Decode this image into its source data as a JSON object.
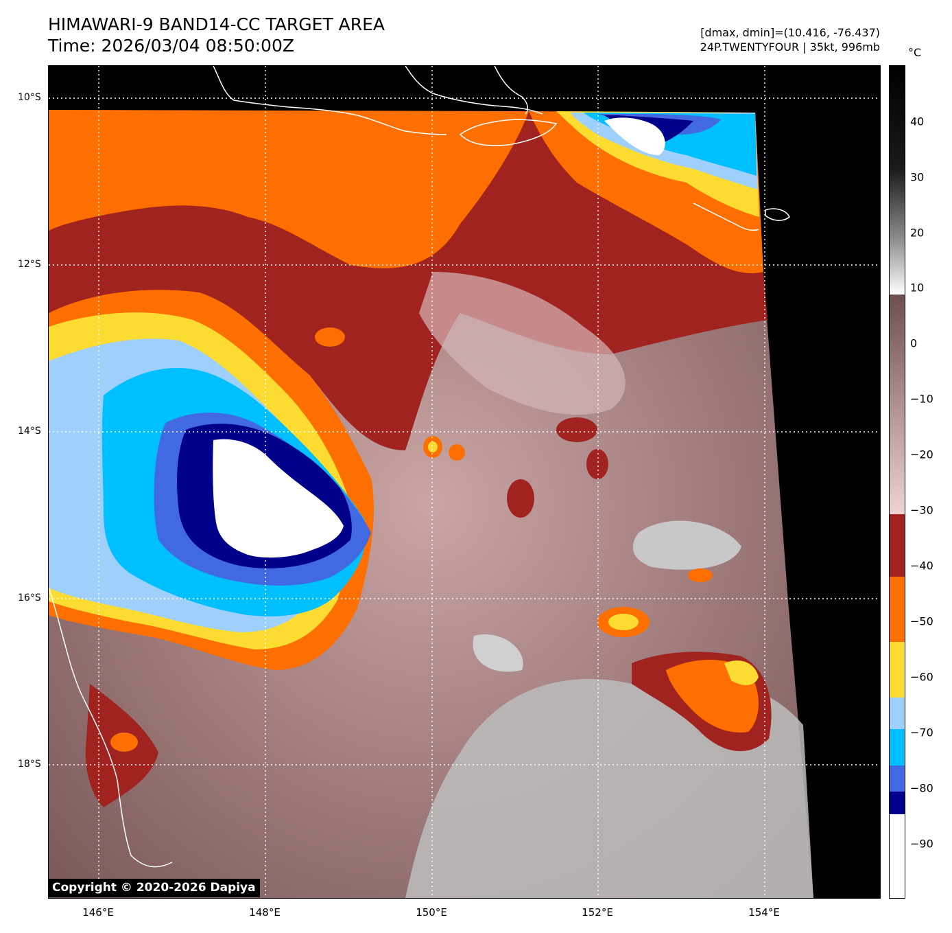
{
  "header": {
    "title_line1": "HIMAWARI-9 BAND14-CC TARGET AREA",
    "title_line2": "Time: 2026/03/04 08:50:00Z",
    "dmax_dmin": "[dmax, dmin]=(10.416, -76.437)",
    "storm_info": "24P.TWENTYFOUR | 35kt, 996mb"
  },
  "colorbar": {
    "unit": "°C",
    "ticks": [
      "40",
      "30",
      "20",
      "10",
      "0",
      "−10",
      "−20",
      "−30",
      "−40",
      "−50",
      "−60",
      "−70",
      "−80",
      "−90"
    ],
    "colors": {
      "white": "#ffffff",
      "navy": "#00008b",
      "royal_blue": "#4169e1",
      "deep_sky_blue": "#00bfff",
      "light_sky_blue": "#9fd0fb",
      "gold": "#fddc32",
      "orange": "#fd6f00",
      "brown": "#a0231f",
      "rosy_light": "#efd3d3",
      "rosy_dark": "#6e4e4e",
      "gray_light": "#f5f5f5",
      "black": "#000000"
    }
  },
  "map": {
    "lat_labels": [
      "10°S",
      "12°S",
      "14°S",
      "16°S",
      "18°S"
    ],
    "lon_labels": [
      "146°E",
      "148°E",
      "150°E",
      "152°E",
      "154°E"
    ],
    "gridlines": "dotted white",
    "copyright": "Copyright © 2020-2026 Dapiya"
  }
}
